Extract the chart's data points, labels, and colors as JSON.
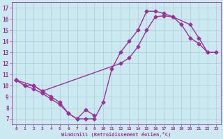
{
  "line1_x": [
    0,
    1,
    2,
    3,
    4,
    5,
    6,
    7,
    8,
    9,
    10,
    11,
    12,
    13,
    14,
    15,
    16,
    17,
    18,
    19,
    20,
    21,
    22
  ],
  "line1_y": [
    10.5,
    10.0,
    10.0,
    9.5,
    9.0,
    8.5,
    7.5,
    7.0,
    7.0,
    7.0,
    8.5,
    11.5,
    13.0,
    14.0,
    15.0,
    16.7,
    16.7,
    16.5,
    16.2,
    15.5,
    14.3,
    13.8,
    13.0
  ],
  "line2_x": [
    0,
    1,
    2,
    3,
    4,
    5,
    6,
    7,
    8,
    9
  ],
  "line2_y": [
    10.5,
    10.0,
    9.7,
    9.3,
    8.8,
    8.3,
    7.5,
    7.0,
    7.8,
    7.3
  ],
  "line3_x": [
    0,
    2,
    3,
    12,
    13,
    14,
    15,
    16,
    17,
    18,
    20,
    21,
    22,
    23
  ],
  "line3_y": [
    10.5,
    10.0,
    9.5,
    12.0,
    12.5,
    13.5,
    15.0,
    16.2,
    16.3,
    16.2,
    15.5,
    14.3,
    13.0,
    13.0
  ],
  "color": "#993399",
  "bg_color": "#cce8f0",
  "grid_color": "#aaccd8",
  "xlabel": "Windchill (Refroidissement éolien,°C)",
  "xlim": [
    -0.5,
    23.5
  ],
  "ylim": [
    6.5,
    17.5
  ],
  "xticks": [
    0,
    1,
    2,
    3,
    4,
    5,
    6,
    7,
    8,
    9,
    10,
    11,
    12,
    13,
    14,
    15,
    16,
    17,
    18,
    19,
    20,
    21,
    22,
    23
  ],
  "yticks": [
    7,
    8,
    9,
    10,
    11,
    12,
    13,
    14,
    15,
    16,
    17
  ],
  "markersize": 2.5,
  "linewidth": 1.0
}
